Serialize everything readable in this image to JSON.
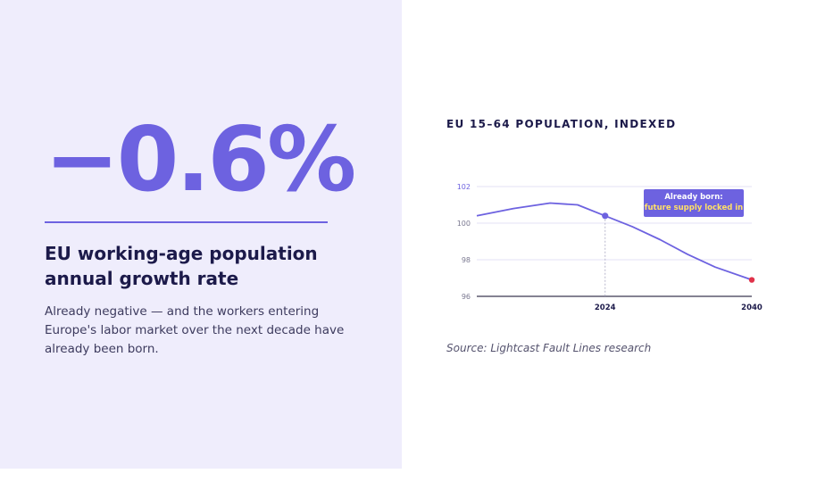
{
  "stat": {
    "value": "−0.6%",
    "headline": "EU working-age population annual growth rate",
    "description": "Already negative — and the workers entering Europe's labor market over the next decade have already been born."
  },
  "chart": {
    "title": "EU 15–64 POPULATION, INDEXED",
    "source": "Source: Lightcast Fault Lines research",
    "callout": {
      "line1": "Already born:",
      "line2": "future supply locked in"
    }
  },
  "colors": {
    "accent": "#6d62e0",
    "panel": "#efedfc",
    "highlight": "#ffe066",
    "endpoint": "#e0324a"
  },
  "chart_data": {
    "type": "line",
    "ylim": [
      96,
      102
    ],
    "yticks": [
      96,
      98,
      100,
      102
    ],
    "xticks": [
      2024,
      2040
    ],
    "series": [
      {
        "x": [
          2010,
          2014,
          2018,
          2021,
          2024,
          2027,
          2030,
          2033,
          2036,
          2040
        ],
        "values": [
          100.4,
          100.8,
          101.1,
          101.0,
          100.4,
          99.8,
          99.1,
          98.3,
          97.6,
          96.9
        ]
      }
    ],
    "markers": [
      {
        "x": 2024,
        "y": 100.4,
        "color": "#6d62e0"
      },
      {
        "x": 2040,
        "y": 96.9,
        "color": "#e0324a"
      }
    ]
  }
}
